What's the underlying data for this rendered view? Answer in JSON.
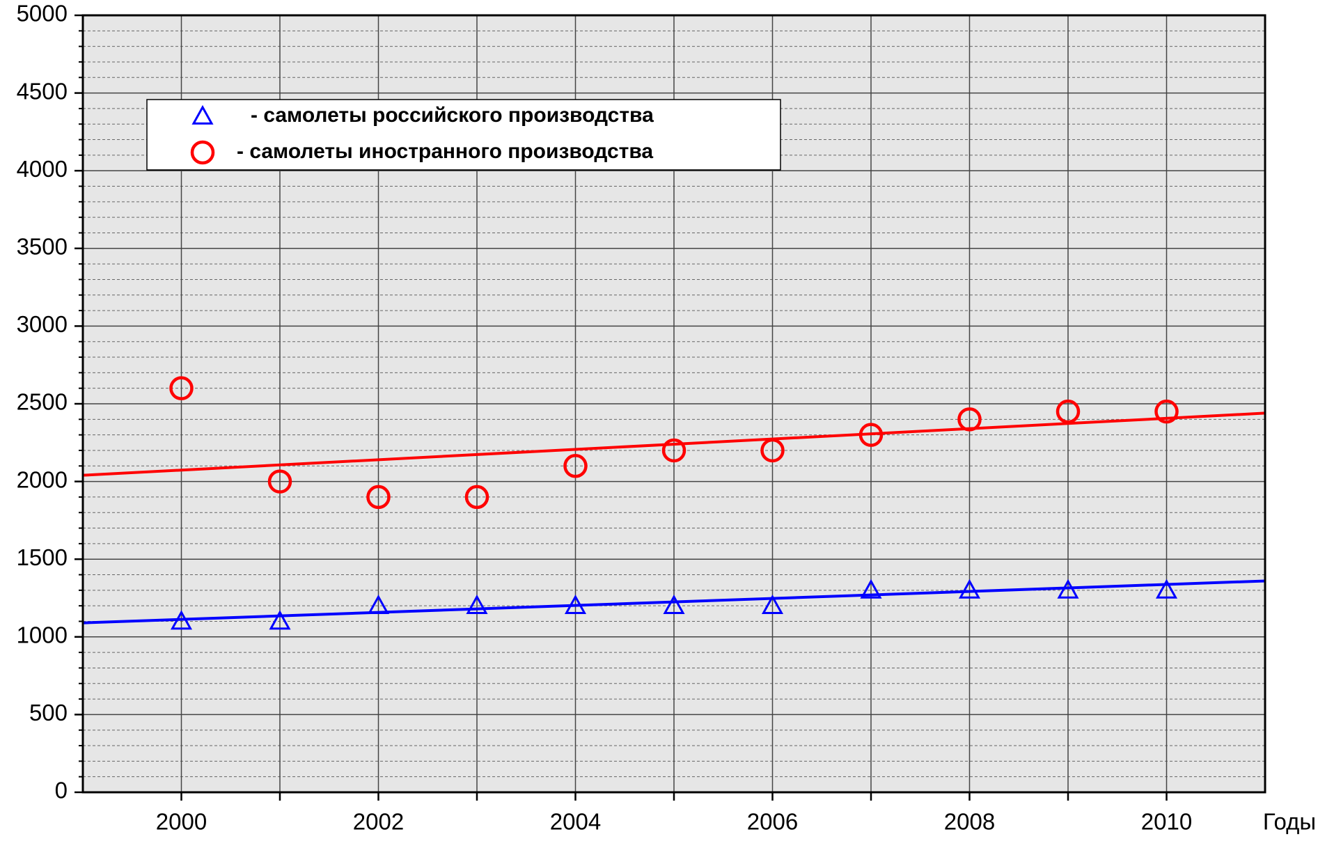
{
  "chart_data": {
    "type": "scatter",
    "x_label": "Годы",
    "xlim": [
      1999,
      2011
    ],
    "xticks": [
      2000,
      2002,
      2004,
      2006,
      2008,
      2010
    ],
    "x_minor_ticks": [
      2001,
      2003,
      2005,
      2007,
      2009
    ],
    "ylim": [
      0,
      5000
    ],
    "yticks": [
      0,
      500,
      1000,
      1500,
      2000,
      2500,
      3000,
      3500,
      4000,
      4500,
      5000
    ],
    "y_minor_ticks": [
      100,
      200,
      300,
      400,
      600,
      700,
      800,
      900,
      1100,
      1200,
      1300,
      1400,
      1600,
      1700,
      1800,
      1900,
      2100,
      2200,
      2300,
      2400,
      2600,
      2700,
      2800,
      2900,
      3100,
      3200,
      3300,
      3400,
      3600,
      3700,
      3800,
      3900,
      4100,
      4200,
      4300,
      4400,
      4600,
      4700,
      4800,
      4900
    ],
    "grid": true,
    "legend": "upper left",
    "series": [
      {
        "name": "- самолеты российского производства",
        "color": "#0000ff",
        "marker": "triangle",
        "x": [
          2000,
          2001,
          2002,
          2003,
          2004,
          2005,
          2006,
          2007,
          2008,
          2009,
          2010
        ],
        "values": [
          1100,
          1100,
          1200,
          1200,
          1200,
          1200,
          1200,
          1300,
          1300,
          1300,
          1300
        ],
        "trend_x": [
          1999,
          2011
        ],
        "trend_values": [
          1090,
          1360
        ]
      },
      {
        "name": "- самолеты иностранного производства",
        "color": "#ff0000",
        "marker": "circle",
        "x": [
          2000,
          2001,
          2002,
          2003,
          2004,
          2005,
          2006,
          2007,
          2008,
          2009,
          2010
        ],
        "values": [
          2600,
          2000,
          1900,
          1900,
          2100,
          2200,
          2200,
          2300,
          2400,
          2450,
          2450
        ],
        "trend_x": [
          1999,
          2011
        ],
        "trend_values": [
          2040,
          2440
        ]
      }
    ]
  }
}
